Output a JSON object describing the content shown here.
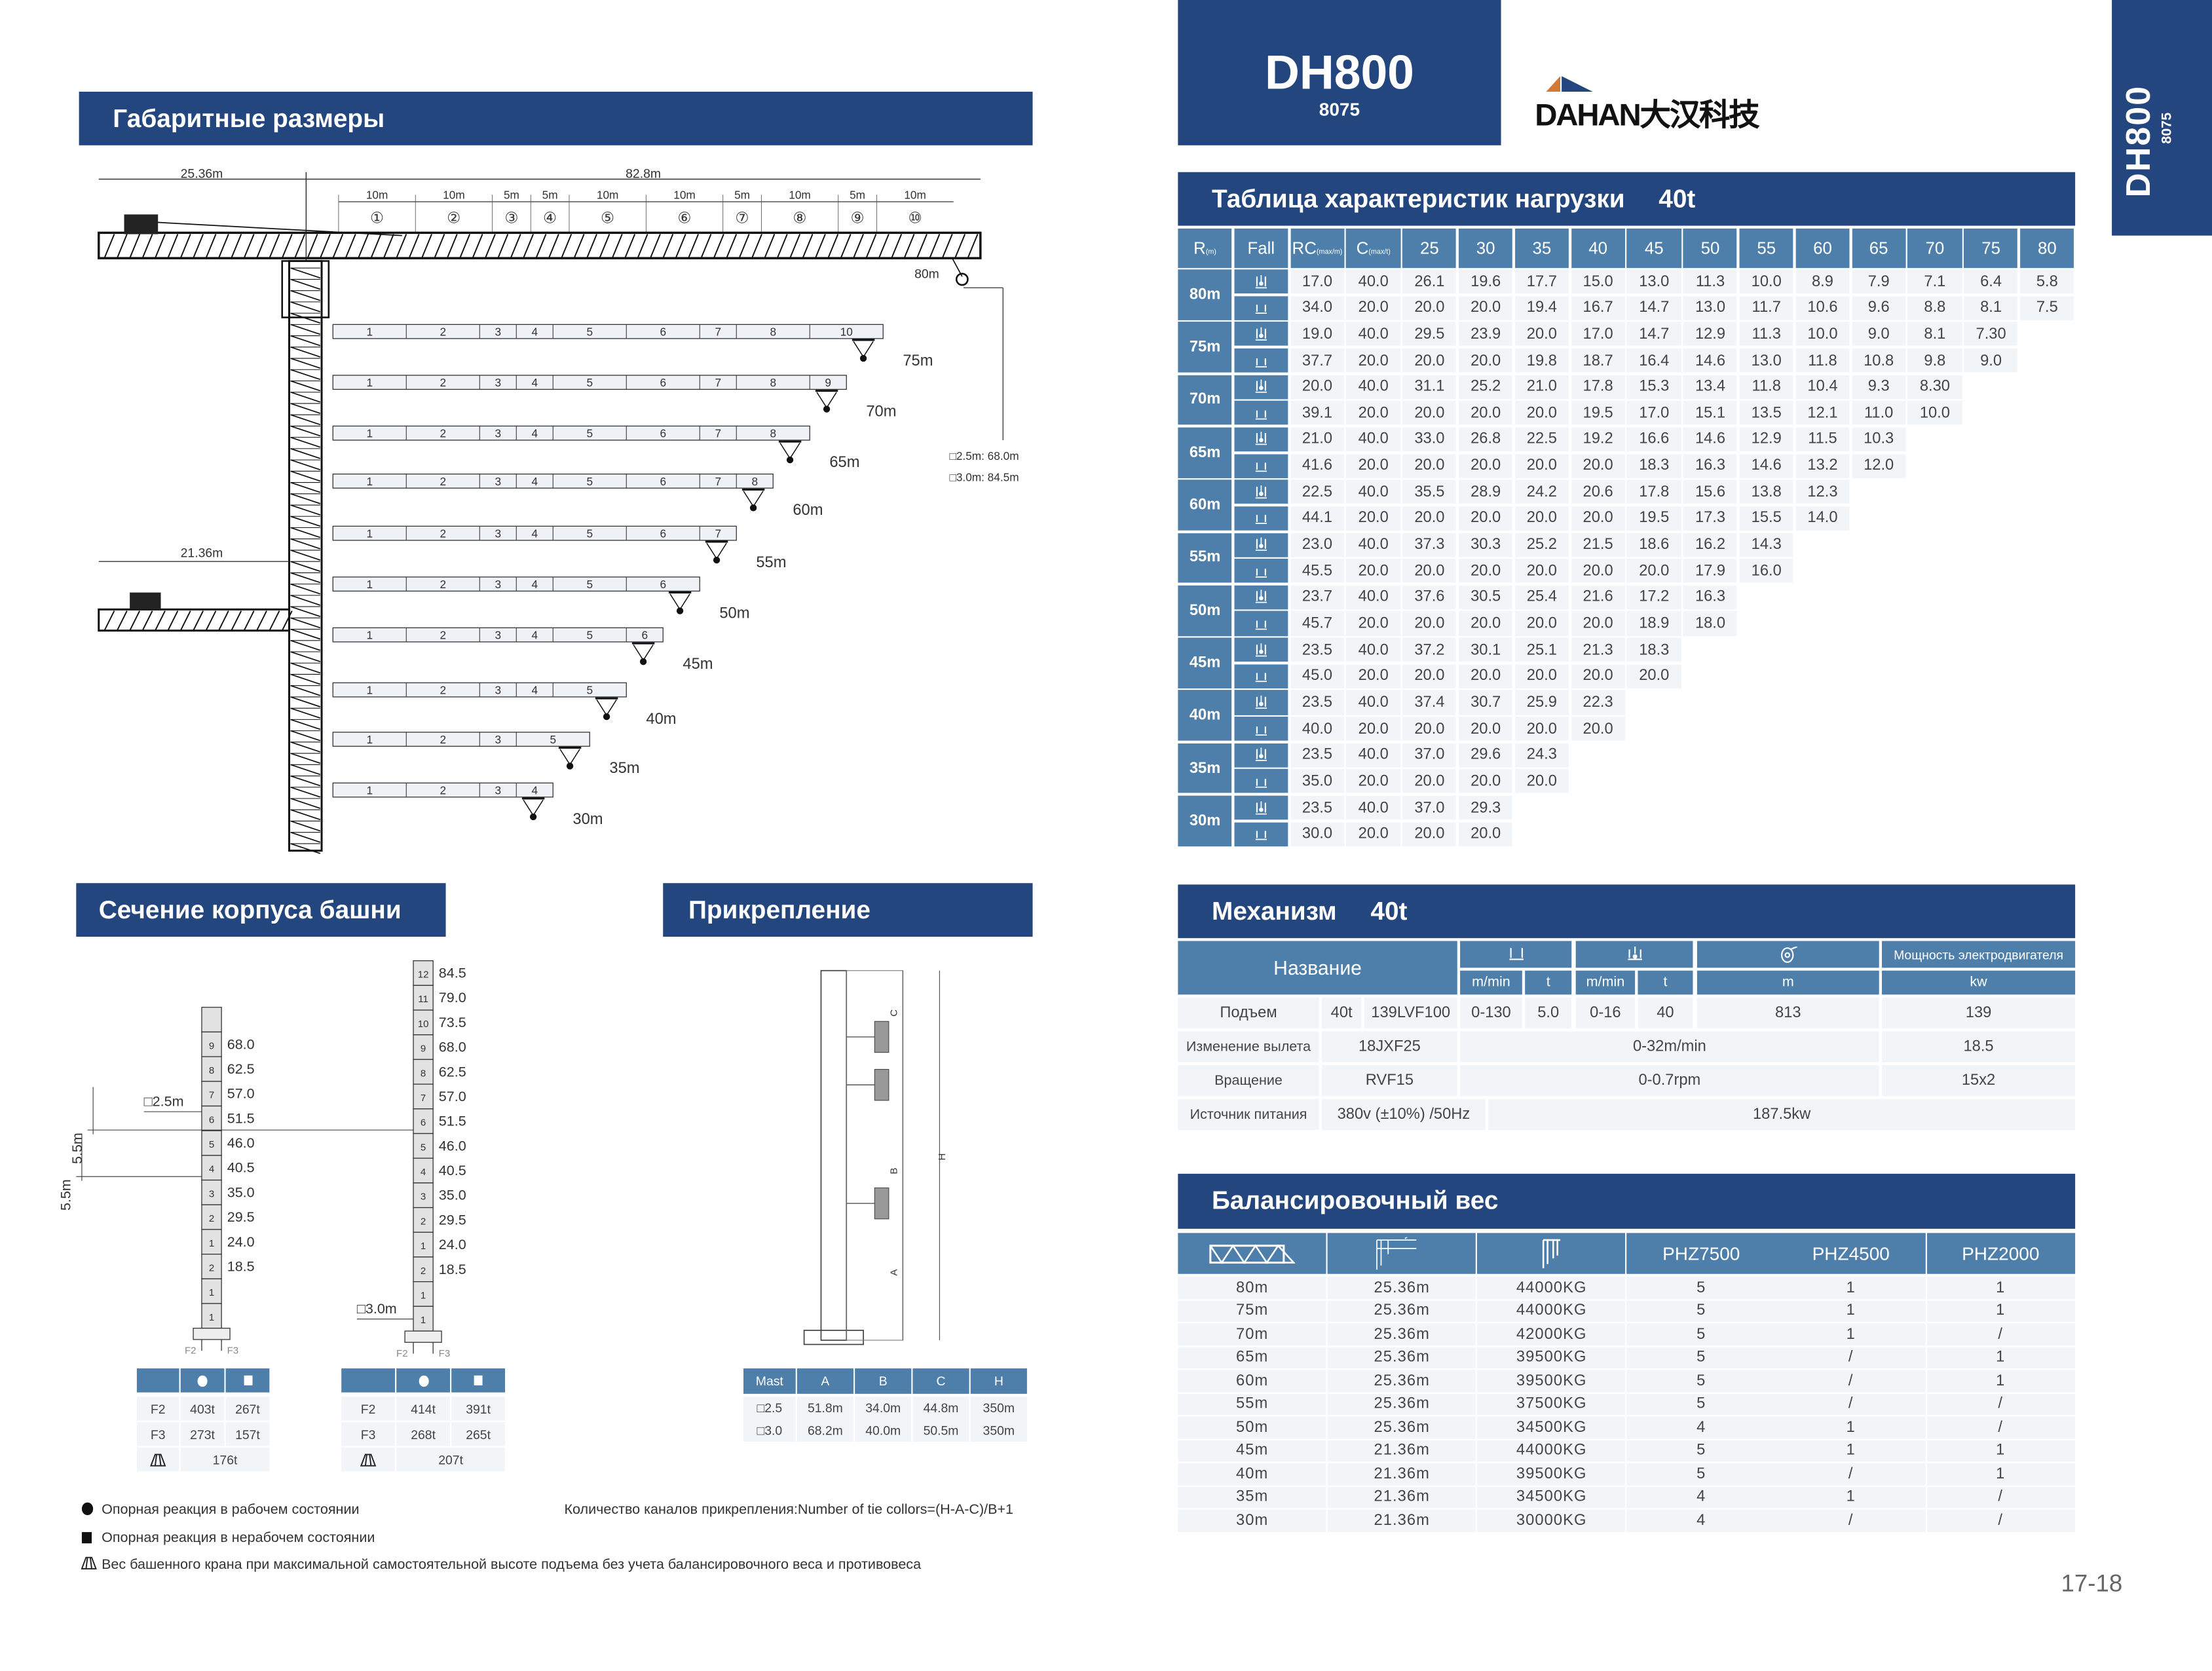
{
  "left_page": {
    "dimensions_title": "Габаритные размеры",
    "crane": {
      "counter_jib_length": "25.36m",
      "counter_jib_short_length": "21.36m",
      "jib_length": "82.8m",
      "jib_segment_lengths": [
        "10m",
        "10m",
        "5m",
        "5m",
        "10m",
        "10m",
        "5m",
        "10m",
        "5m",
        "10m"
      ],
      "jib_segment_numbers": [
        "①",
        "②",
        "③",
        "④",
        "⑤",
        "⑥",
        "⑦",
        "⑧",
        "⑨",
        "⑩"
      ],
      "max_radius_label": "80m",
      "height_notes": [
        "□2.5m: 68.0m",
        "□3.0m: 84.5m"
      ],
      "jib_configs": [
        {
          "radius": "75m",
          "segments": [
            "1",
            "2",
            "3",
            "4",
            "5",
            "6",
            "7",
            "8",
            "10"
          ]
        },
        {
          "radius": "70m",
          "segments": [
            "1",
            "2",
            "3",
            "4",
            "5",
            "6",
            "7",
            "8",
            "9"
          ]
        },
        {
          "radius": "65m",
          "segments": [
            "1",
            "2",
            "3",
            "4",
            "5",
            "6",
            "7",
            "8"
          ]
        },
        {
          "radius": "60m",
          "segments": [
            "1",
            "2",
            "3",
            "4",
            "5",
            "6",
            "7",
            "8"
          ]
        },
        {
          "radius": "55m",
          "segments": [
            "1",
            "2",
            "3",
            "4",
            "5",
            "6",
            "7"
          ]
        },
        {
          "radius": "50m",
          "segments": [
            "1",
            "2",
            "3",
            "4",
            "5",
            "6"
          ]
        },
        {
          "radius": "45m",
          "segments": [
            "1",
            "2",
            "3",
            "4",
            "5",
            "6"
          ]
        },
        {
          "radius": "40m",
          "segments": [
            "1",
            "2",
            "3",
            "4",
            "5"
          ]
        },
        {
          "radius": "35m",
          "segments": [
            "1",
            "2",
            "3",
            "5"
          ]
        },
        {
          "radius": "30m",
          "segments": [
            "1",
            "2",
            "3",
            "4"
          ]
        }
      ]
    },
    "tower_section_title": "Сечение корпуса башни",
    "attachment_title": "Прикрепление",
    "mast_left": {
      "size_label": "□2.5m",
      "step_label": "5.5m",
      "sections": [
        {
          "n": "",
          "h": ""
        },
        {
          "n": "9",
          "h": "68.0"
        },
        {
          "n": "8",
          "h": "62.5"
        },
        {
          "n": "7",
          "h": "57.0"
        },
        {
          "n": "6",
          "h": "51.5"
        },
        {
          "n": "5",
          "h": "46.0"
        },
        {
          "n": "4",
          "h": "40.5"
        },
        {
          "n": "3",
          "h": "35.0"
        },
        {
          "n": "2",
          "h": "29.5"
        },
        {
          "n": "1",
          "h": "24.0"
        },
        {
          "n": "2",
          "h": "18.5"
        },
        {
          "n": "1",
          "h": ""
        },
        {
          "n": "1",
          "h": ""
        }
      ],
      "force_labels": [
        "F2",
        "F3"
      ]
    },
    "mast_right": {
      "size_label": "□3.0m",
      "step_label": "5.5m",
      "sections": [
        {
          "n": "12",
          "h": "84.5"
        },
        {
          "n": "11",
          "h": "79.0"
        },
        {
          "n": "10",
          "h": "73.5"
        },
        {
          "n": "9",
          "h": "68.0"
        },
        {
          "n": "8",
          "h": "62.5"
        },
        {
          "n": "7",
          "h": "57.0"
        },
        {
          "n": "6",
          "h": "51.5"
        },
        {
          "n": "5",
          "h": "46.0"
        },
        {
          "n": "4",
          "h": "40.5"
        },
        {
          "n": "3",
          "h": "35.0"
        },
        {
          "n": "2",
          "h": "29.5"
        },
        {
          "n": "1",
          "h": "24.0"
        },
        {
          "n": "2",
          "h": "18.5"
        },
        {
          "n": "1",
          "h": ""
        },
        {
          "n": "1",
          "h": ""
        }
      ],
      "force_labels": [
        "F2",
        "F3"
      ]
    },
    "reactions_left": {
      "rows": [
        {
          "label": "F2",
          "working": "403t",
          "nonworking": "267t"
        },
        {
          "label": "F3",
          "working": "273t",
          "nonworking": "157t"
        }
      ],
      "tower_weight": "176t"
    },
    "reactions_right": {
      "rows": [
        {
          "label": "F2",
          "working": "414t",
          "nonworking": "391t"
        },
        {
          "label": "F3",
          "working": "268t",
          "nonworking": "265t"
        }
      ],
      "tower_weight": "207t"
    },
    "attachment_diagram_labels": {
      "a": "A",
      "b": "B",
      "c": "C",
      "h": "H"
    },
    "attachment_table": {
      "headers": [
        "Mast",
        "A",
        "B",
        "C",
        "H"
      ],
      "rows": [
        [
          "□2.5",
          "51.8m",
          "34.0m",
          "44.8m",
          "350m"
        ],
        [
          "□3.0",
          "68.2m",
          "40.0m",
          "50.5m",
          "350m"
        ]
      ]
    },
    "notes": {
      "working": "Опорная реакция в рабочем состоянии",
      "nonworking": "Опорная реакция в нерабочем состоянии",
      "tower_weight": "Вес башенного крана при максимальной самостоятельной высоте подъема без учета балансировочного веса и противовеса",
      "tie_formula": "Количество каналов прикрепления:Number of tie collors=(H-A-C)/B+1"
    }
  },
  "right_page": {
    "model": "DH800",
    "model_code": "8075",
    "side_tab_model": "DH800",
    "side_tab_code": "8075",
    "logo_text": "DAHAN大汉科技",
    "colors": {
      "band": "#23467f",
      "table_header": "#4e7fab",
      "cell": "#f2f5f8",
      "logo_orange": "#d27a35"
    },
    "load_table": {
      "title": "Таблица характеристик нагрузки",
      "capacity": "40t",
      "headers": {
        "r": "R",
        "r_unit": "(m)",
        "fall": "Fall",
        "rc": "RC",
        "rc_unit": "(max/m)",
        "c": "C",
        "c_unit": "(max/t)"
      },
      "radius_columns": [
        "25",
        "30",
        "35",
        "40",
        "45",
        "50",
        "55",
        "60",
        "65",
        "70",
        "75",
        "80"
      ],
      "fall_icons": [
        "four-fall-icon",
        "two-fall-icon"
      ],
      "groups": [
        {
          "r": "80m",
          "rows": [
            {
              "rc": "17.0",
              "c": "40.0",
              "v": [
                "26.1",
                "19.6",
                "17.7",
                "15.0",
                "13.0",
                "11.3",
                "10.0",
                "8.9",
                "7.9",
                "7.1",
                "6.4",
                "5.8"
              ]
            },
            {
              "rc": "34.0",
              "c": "20.0",
              "v": [
                "20.0",
                "20.0",
                "19.4",
                "16.7",
                "14.7",
                "13.0",
                "11.7",
                "10.6",
                "9.6",
                "8.8",
                "8.1",
                "7.5"
              ]
            }
          ]
        },
        {
          "r": "75m",
          "rows": [
            {
              "rc": "19.0",
              "c": "40.0",
              "v": [
                "29.5",
                "23.9",
                "20.0",
                "17.0",
                "14.7",
                "12.9",
                "11.3",
                "10.0",
                "9.0",
                "8.1",
                "7.30"
              ]
            },
            {
              "rc": "37.7",
              "c": "20.0",
              "v": [
                "20.0",
                "20.0",
                "19.8",
                "18.7",
                "16.4",
                "14.6",
                "13.0",
                "11.8",
                "10.8",
                "9.8",
                "9.0"
              ]
            }
          ]
        },
        {
          "r": "70m",
          "rows": [
            {
              "rc": "20.0",
              "c": "40.0",
              "v": [
                "31.1",
                "25.2",
                "21.0",
                "17.8",
                "15.3",
                "13.4",
                "11.8",
                "10.4",
                "9.3",
                "8.30"
              ]
            },
            {
              "rc": "39.1",
              "c": "20.0",
              "v": [
                "20.0",
                "20.0",
                "20.0",
                "19.5",
                "17.0",
                "15.1",
                "13.5",
                "12.1",
                "11.0",
                "10.0"
              ]
            }
          ]
        },
        {
          "r": "65m",
          "rows": [
            {
              "rc": "21.0",
              "c": "40.0",
              "v": [
                "33.0",
                "26.8",
                "22.5",
                "19.2",
                "16.6",
                "14.6",
                "12.9",
                "11.5",
                "10.3"
              ]
            },
            {
              "rc": "41.6",
              "c": "20.0",
              "v": [
                "20.0",
                "20.0",
                "20.0",
                "20.0",
                "18.3",
                "16.3",
                "14.6",
                "13.2",
                "12.0"
              ]
            }
          ]
        },
        {
          "r": "60m",
          "rows": [
            {
              "rc": "22.5",
              "c": "40.0",
              "v": [
                "35.5",
                "28.9",
                "24.2",
                "20.6",
                "17.8",
                "15.6",
                "13.8",
                "12.3"
              ]
            },
            {
              "rc": "44.1",
              "c": "20.0",
              "v": [
                "20.0",
                "20.0",
                "20.0",
                "20.0",
                "19.5",
                "17.3",
                "15.5",
                "14.0"
              ]
            }
          ]
        },
        {
          "r": "55m",
          "rows": [
            {
              "rc": "23.0",
              "c": "40.0",
              "v": [
                "37.3",
                "30.3",
                "25.2",
                "21.5",
                "18.6",
                "16.2",
                "14.3"
              ]
            },
            {
              "rc": "45.5",
              "c": "20.0",
              "v": [
                "20.0",
                "20.0",
                "20.0",
                "20.0",
                "20.0",
                "17.9",
                "16.0"
              ]
            }
          ]
        },
        {
          "r": "50m",
          "rows": [
            {
              "rc": "23.7",
              "c": "40.0",
              "v": [
                "37.6",
                "30.5",
                "25.4",
                "21.6",
                "17.2",
                "16.3"
              ]
            },
            {
              "rc": "45.7",
              "c": "20.0",
              "v": [
                "20.0",
                "20.0",
                "20.0",
                "20.0",
                "18.9",
                "18.0"
              ]
            }
          ]
        },
        {
          "r": "45m",
          "rows": [
            {
              "rc": "23.5",
              "c": "40.0",
              "v": [
                "37.2",
                "30.1",
                "25.1",
                "21.3",
                "18.3"
              ]
            },
            {
              "rc": "45.0",
              "c": "20.0",
              "v": [
                "20.0",
                "20.0",
                "20.0",
                "20.0",
                "20.0"
              ]
            }
          ]
        },
        {
          "r": "40m",
          "rows": [
            {
              "rc": "23.5",
              "c": "40.0",
              "v": [
                "37.4",
                "30.7",
                "25.9",
                "22.3"
              ]
            },
            {
              "rc": "40.0",
              "c": "20.0",
              "v": [
                "20.0",
                "20.0",
                "20.0",
                "20.0"
              ]
            }
          ]
        },
        {
          "r": "35m",
          "rows": [
            {
              "rc": "23.5",
              "c": "40.0",
              "v": [
                "37.0",
                "29.6",
                "24.3"
              ]
            },
            {
              "rc": "35.0",
              "c": "20.0",
              "v": [
                "20.0",
                "20.0",
                "20.0"
              ]
            }
          ]
        },
        {
          "r": "30m",
          "rows": [
            {
              "rc": "23.5",
              "c": "40.0",
              "v": [
                "37.0",
                "29.3"
              ]
            },
            {
              "rc": "30.0",
              "c": "20.0",
              "v": [
                "20.0",
                "20.0"
              ]
            }
          ]
        }
      ]
    },
    "mechanism": {
      "title": "Механизм",
      "capacity": "40t",
      "header_name": "Название",
      "header_power": "Мощность электродвигателя",
      "units": {
        "speed1": "m/min",
        "load1": "t",
        "speed2": "m/min",
        "load2": "t",
        "rope": "m",
        "power": "kw"
      },
      "hoist": {
        "name": "Подъем",
        "capacity": "40t",
        "model": "139LVF100",
        "speed1": "0-130",
        "load1": "5.0",
        "speed2": "0-16",
        "load2": "40",
        "rope": "813",
        "power": "139"
      },
      "trolley": {
        "name": "Изменение вылета",
        "model": "18JXF25",
        "speed": "0-32m/min",
        "power": "18.5"
      },
      "slewing": {
        "name": "Вращение",
        "model": "RVF15",
        "speed": "0-0.7rpm",
        "power": "15x2"
      },
      "power_supply": {
        "name": "Источник питания",
        "value": "380v (±10%) /50Hz",
        "total": "187.5kw"
      }
    },
    "ballast": {
      "title": "Балансировочный вес",
      "headers": [
        "PHZ7500",
        "PHZ4500",
        "PHZ2000"
      ],
      "rows": [
        [
          "80m",
          "25.36m",
          "44000KG",
          "5",
          "1",
          "1"
        ],
        [
          "75m",
          "25.36m",
          "44000KG",
          "5",
          "1",
          "1"
        ],
        [
          "70m",
          "25.36m",
          "42000KG",
          "5",
          "1",
          "/"
        ],
        [
          "65m",
          "25.36m",
          "39500KG",
          "5",
          "/",
          "1"
        ],
        [
          "60m",
          "25.36m",
          "39500KG",
          "5",
          "/",
          "1"
        ],
        [
          "55m",
          "25.36m",
          "37500KG",
          "5",
          "/",
          "/"
        ],
        [
          "50m",
          "25.36m",
          "34500KG",
          "4",
          "1",
          "/"
        ],
        [
          "45m",
          "21.36m",
          "44000KG",
          "5",
          "1",
          "1"
        ],
        [
          "40m",
          "21.36m",
          "39500KG",
          "5",
          "/",
          "1"
        ],
        [
          "35m",
          "21.36m",
          "34500KG",
          "4",
          "1",
          "/"
        ],
        [
          "30m",
          "21.36m",
          "30000KG",
          "4",
          "/",
          "/"
        ]
      ]
    },
    "page_number": "17-18"
  }
}
